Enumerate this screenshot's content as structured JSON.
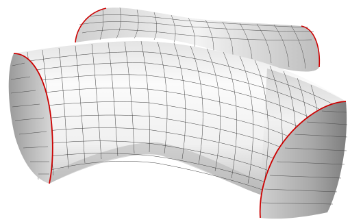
{
  "figure": {
    "subject": "cross-junction-surface-mesh",
    "background_color": "#ffffff",
    "mesh_line_color": "#3a3a3a",
    "boundary_color": "#cc0000",
    "shade_light": "#f8f8f8",
    "shade_dark": "#9a9a9a"
  }
}
